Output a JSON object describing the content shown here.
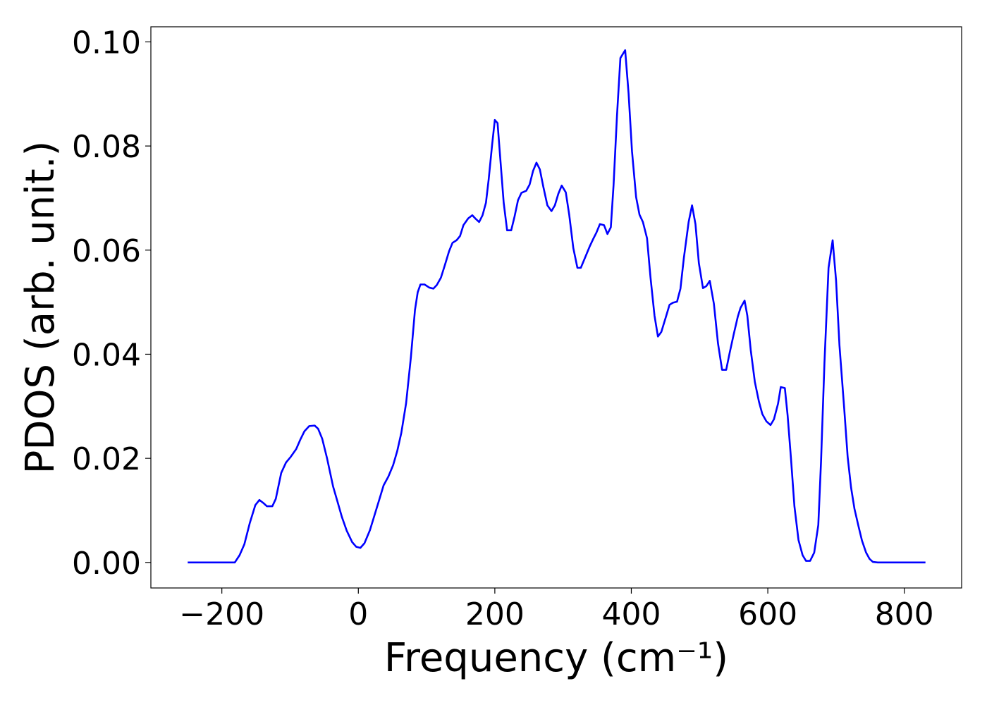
{
  "chart_data": {
    "type": "line",
    "x_label": "Frequency (cm⁻¹)",
    "y_label": "PDOS (arb. unit.)",
    "xlim": [
      -304,
      884
    ],
    "ylim": [
      -0.0049,
      0.1029
    ],
    "xticks": [
      {
        "value": -200,
        "label": "−200"
      },
      0,
      200,
      400,
      600,
      800
    ],
    "yticks": [
      {
        "value": 0,
        "label": "0.00"
      },
      {
        "value": 0.02,
        "label": "0.02"
      },
      {
        "value": 0.04,
        "label": "0.04"
      },
      {
        "value": 0.06,
        "label": "0.06"
      },
      {
        "value": 0.08,
        "label": "0.08"
      },
      {
        "value": 0.1,
        "label": "0.10"
      }
    ],
    "color": "#0000ff",
    "x": [
      -250,
      -200,
      -181,
      -174,
      -167,
      -159,
      -151,
      -145,
      -139,
      -134,
      -126,
      -121,
      -113,
      -106,
      -99,
      -91,
      -85,
      -79,
      -72,
      -64,
      -59,
      -53,
      -46,
      -37,
      -31,
      -24,
      -17,
      -9,
      -3,
      3,
      9,
      17,
      24,
      31,
      37,
      44,
      51,
      57,
      63,
      70,
      77,
      83,
      87,
      91,
      97,
      104,
      110,
      115,
      121,
      127,
      133,
      138,
      144,
      149,
      154,
      161,
      167,
      172,
      177,
      182,
      187,
      191,
      196,
      200,
      204,
      208,
      213,
      218,
      224,
      229,
      234,
      239,
      246,
      251,
      256,
      261,
      266,
      271,
      277,
      283,
      288,
      293,
      298,
      304,
      309,
      315,
      321,
      326,
      333,
      339,
      344,
      349,
      354,
      360,
      365,
      370,
      374,
      379,
      384,
      391,
      396,
      401,
      407,
      412,
      417,
      423,
      428,
      434,
      439,
      444,
      451,
      456,
      461,
      467,
      472,
      477,
      484,
      489,
      494,
      499,
      505,
      510,
      515,
      521,
      527,
      533,
      539,
      544,
      550,
      556,
      560,
      566,
      570,
      575,
      581,
      587,
      592,
      598,
      604,
      609,
      615,
      619,
      625,
      629,
      634,
      639,
      645,
      651,
      656,
      662,
      668,
      674,
      678,
      683,
      689,
      695,
      700,
      705,
      712,
      717,
      722,
      727,
      733,
      738,
      744,
      749,
      754,
      761,
      831
    ],
    "values": [
      0,
      0,
      0,
      0.0014,
      0.0035,
      0.0076,
      0.011,
      0.012,
      0.0114,
      0.0108,
      0.0108,
      0.0122,
      0.0172,
      0.0192,
      0.0203,
      0.0218,
      0.0236,
      0.0252,
      0.0262,
      0.0263,
      0.0257,
      0.0238,
      0.0201,
      0.0146,
      0.0119,
      0.0087,
      0.0061,
      0.0039,
      0.003,
      0.0028,
      0.0037,
      0.0062,
      0.0092,
      0.0122,
      0.0148,
      0.0165,
      0.0187,
      0.0214,
      0.0249,
      0.0306,
      0.0394,
      0.0485,
      0.0519,
      0.0534,
      0.0534,
      0.0528,
      0.0526,
      0.0533,
      0.0547,
      0.0572,
      0.0598,
      0.0614,
      0.0619,
      0.0627,
      0.0648,
      0.0661,
      0.0667,
      0.066,
      0.0654,
      0.0667,
      0.0691,
      0.0736,
      0.0802,
      0.085,
      0.0844,
      0.0776,
      0.0691,
      0.0638,
      0.0638,
      0.0665,
      0.0696,
      0.071,
      0.0714,
      0.0726,
      0.0752,
      0.0768,
      0.0755,
      0.0722,
      0.0686,
      0.0675,
      0.0686,
      0.0708,
      0.0724,
      0.0711,
      0.0668,
      0.0604,
      0.0566,
      0.0566,
      0.0588,
      0.0607,
      0.0621,
      0.0634,
      0.065,
      0.0648,
      0.0631,
      0.0644,
      0.0725,
      0.0858,
      0.0969,
      0.0984,
      0.0901,
      0.079,
      0.0702,
      0.0668,
      0.0654,
      0.0623,
      0.0549,
      0.0474,
      0.0434,
      0.0443,
      0.0473,
      0.0495,
      0.0499,
      0.0501,
      0.0526,
      0.0585,
      0.0654,
      0.0686,
      0.065,
      0.0575,
      0.0527,
      0.0531,
      0.0541,
      0.0497,
      0.0421,
      0.037,
      0.037,
      0.0402,
      0.0438,
      0.0472,
      0.0489,
      0.0503,
      0.0474,
      0.0408,
      0.0347,
      0.0309,
      0.0285,
      0.0271,
      0.0264,
      0.0275,
      0.0305,
      0.0337,
      0.0335,
      0.0283,
      0.0199,
      0.0108,
      0.0043,
      0.0014,
      0.0003,
      0.0003,
      0.0019,
      0.0072,
      0.0194,
      0.0383,
      0.0566,
      0.0619,
      0.0542,
      0.0417,
      0.0295,
      0.0203,
      0.0144,
      0.0103,
      0.0069,
      0.0042,
      0.0019,
      0.0007,
      0.0001,
      0,
      0
    ]
  }
}
